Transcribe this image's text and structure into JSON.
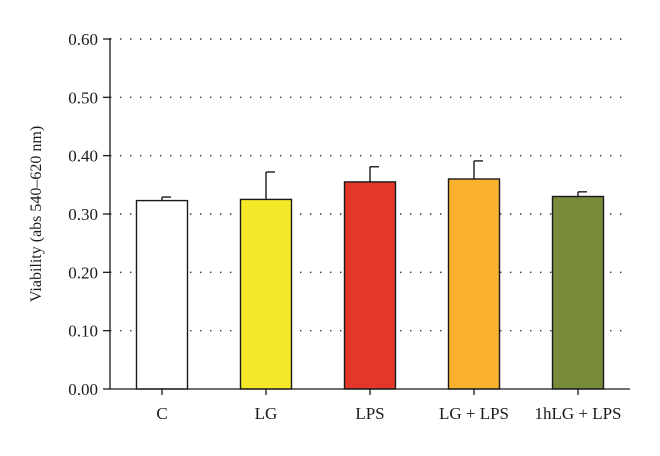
{
  "chart_data": {
    "type": "bar",
    "title": "",
    "xlabel": "",
    "ylabel": "Viability (abs 540–620 nm)",
    "ylim": [
      0,
      0.6
    ],
    "yticks": [
      "0.00",
      "0.10",
      "0.20",
      "0.30",
      "0.40",
      "0.50",
      "0.60"
    ],
    "grid": "horizontal-dotted",
    "categories": [
      "C",
      "LG",
      "LPS",
      "LG + LPS",
      "1hLG + LPS"
    ],
    "values": [
      0.323,
      0.325,
      0.355,
      0.36,
      0.33
    ],
    "errors": [
      0.006,
      0.047,
      0.026,
      0.031,
      0.008
    ],
    "colors": [
      "#ffffff",
      "#f5e829",
      "#e2372a",
      "#f9b12e",
      "#778b3a"
    ]
  }
}
